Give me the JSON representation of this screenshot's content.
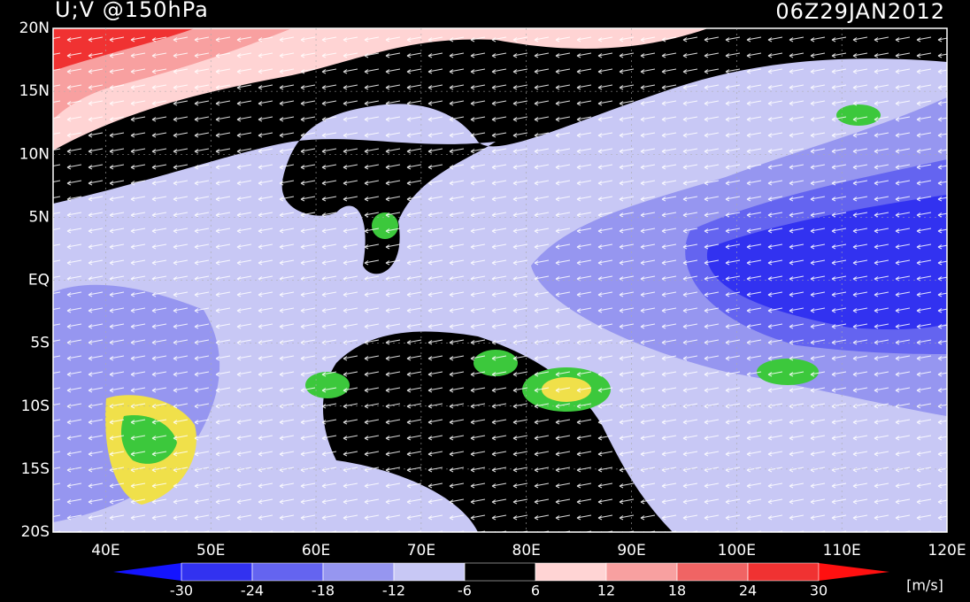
{
  "map": {
    "title": "U;V @150hPa",
    "valid_time": "06Z29JAN2012",
    "lat_labels": [
      "20N",
      "15N",
      "10N",
      "5N",
      "EQ",
      "5S",
      "10S",
      "15S",
      "20S"
    ],
    "lon_labels": [
      "40E",
      "50E",
      "60E",
      "70E",
      "80E",
      "90E",
      "100E",
      "110E",
      "120E"
    ],
    "colorbar": {
      "ticks": [
        -30,
        -24,
        -18,
        -12,
        -6,
        6,
        12,
        18,
        24,
        30
      ],
      "colors": [
        "#1414ff",
        "#3232f0",
        "#6464f0",
        "#9696f0",
        "#c8c8f5",
        "#000000",
        "#ffd4d4",
        "#f8a0a0",
        "#f06464",
        "#f03232",
        "#ff1010"
      ],
      "unit": "[m/s]"
    }
  }
}
